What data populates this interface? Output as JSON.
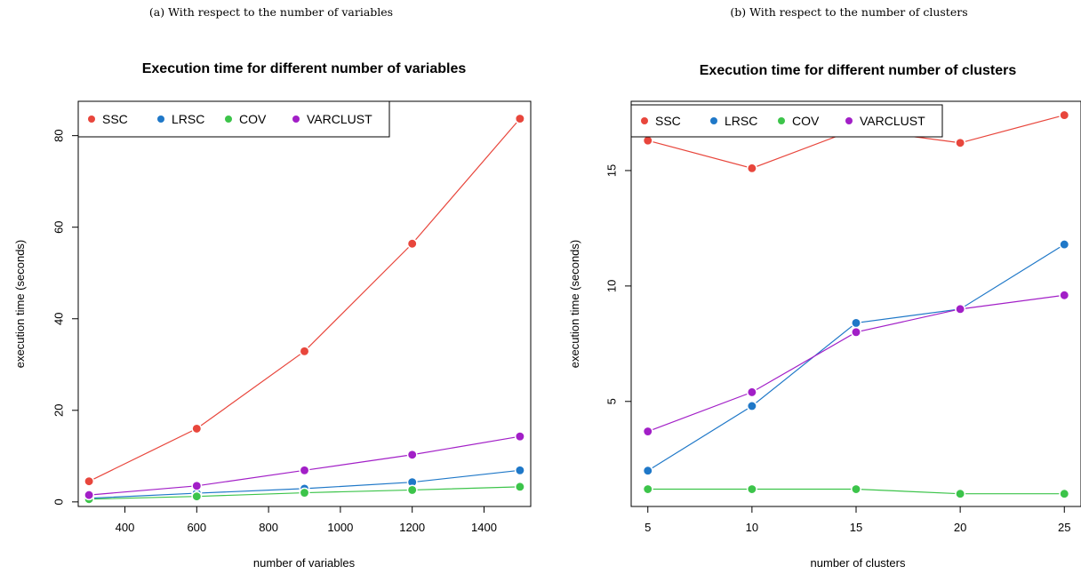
{
  "captions": [
    "(a) With respect to the number of variables",
    "(b) With respect to the number of clusters"
  ],
  "chart_data": [
    {
      "type": "line",
      "title": "Execution time for different number of variables",
      "xlabel": "number of variables",
      "ylabel": "execution time (seconds)",
      "x": [
        300,
        600,
        900,
        1200,
        1500
      ],
      "xticks": [
        400,
        600,
        800,
        1000,
        1200,
        1400
      ],
      "yticks": [
        0,
        20,
        40,
        60,
        80
      ],
      "xlim": [
        270,
        1530
      ],
      "ylim": [
        -1,
        87.5
      ],
      "legend_position": "top-left",
      "grid": false,
      "series": [
        {
          "name": "SSC",
          "color": "#e8463c",
          "values": [
            4.5,
            16.0,
            32.9,
            56.4,
            83.7
          ]
        },
        {
          "name": "LRSC",
          "color": "#1f78c8",
          "values": [
            0.8,
            1.9,
            2.9,
            4.3,
            6.9
          ]
        },
        {
          "name": "COV",
          "color": "#3cc44a",
          "values": [
            0.6,
            1.2,
            2.0,
            2.6,
            3.3
          ]
        },
        {
          "name": "VARCLUST",
          "color": "#a21fc7",
          "values": [
            1.5,
            3.5,
            6.9,
            10.3,
            14.3
          ]
        }
      ]
    },
    {
      "type": "line",
      "title": "Execution time for different number of clusters",
      "xlabel": "number of clusters",
      "ylabel": "execution time (seconds)",
      "x": [
        5,
        10,
        15,
        20,
        25
      ],
      "xticks": [
        5,
        10,
        15,
        20,
        25
      ],
      "yticks": [
        5,
        10,
        15
      ],
      "xlim": [
        4.2,
        25.8
      ],
      "ylim": [
        0.45,
        18.0
      ],
      "legend_position": "top-left",
      "grid": false,
      "series": [
        {
          "name": "SSC",
          "color": "#e8463c",
          "values": [
            16.3,
            15.1,
            16.8,
            16.2,
            17.4
          ]
        },
        {
          "name": "LRSC",
          "color": "#1f78c8",
          "values": [
            2.0,
            4.8,
            8.4,
            9.0,
            11.8
          ]
        },
        {
          "name": "COV",
          "color": "#3cc44a",
          "values": [
            1.2,
            1.2,
            1.2,
            1.0,
            1.0
          ]
        },
        {
          "name": "VARCLUST",
          "color": "#a21fc7",
          "values": [
            3.7,
            5.4,
            8.0,
            9.0,
            9.6
          ]
        }
      ]
    }
  ]
}
